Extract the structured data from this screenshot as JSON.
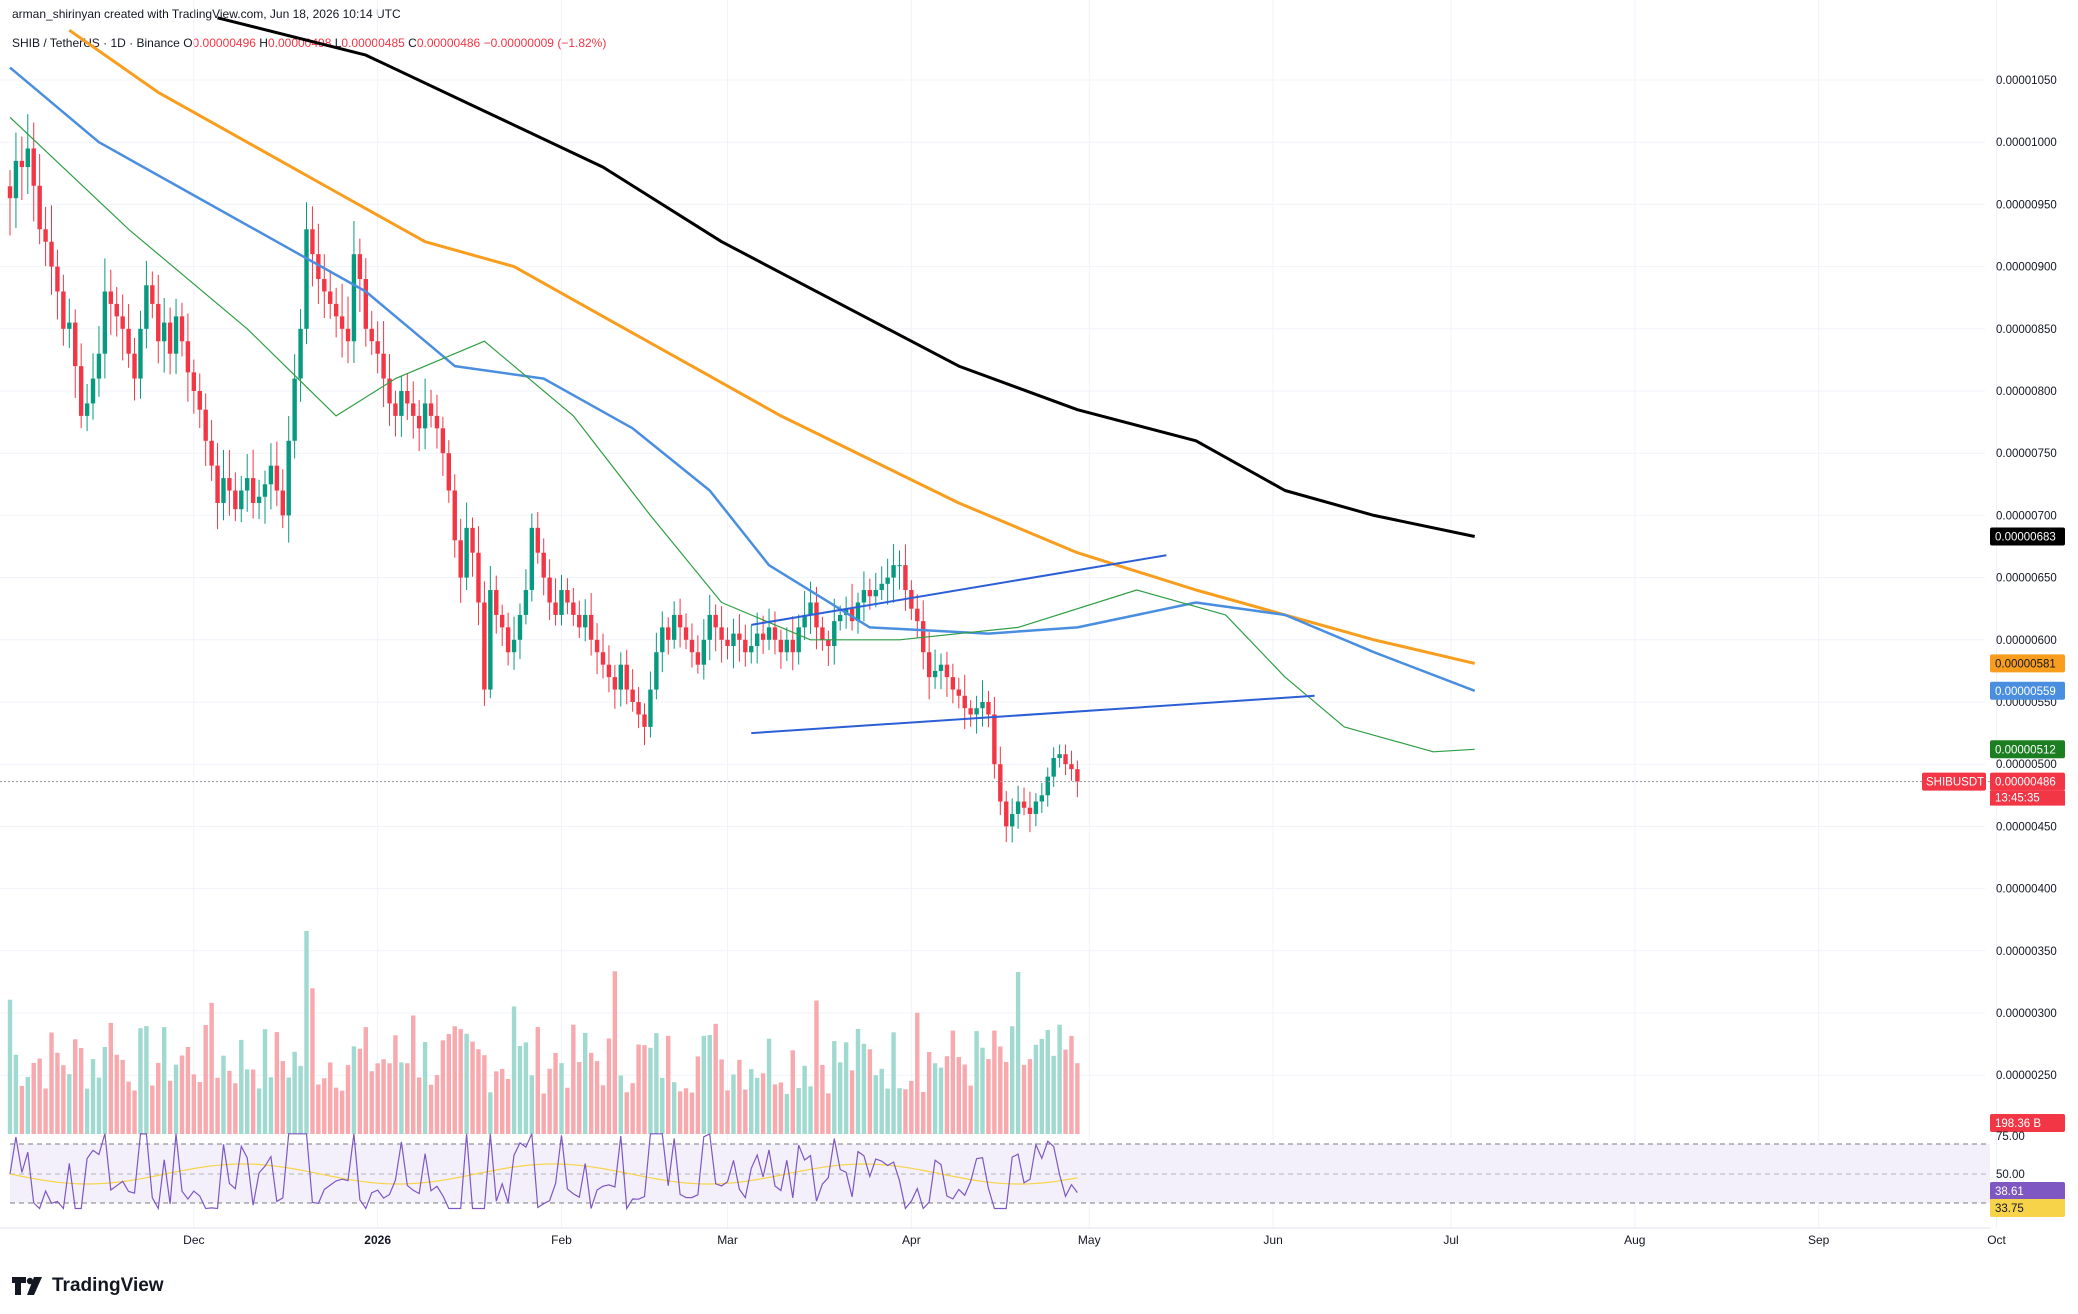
{
  "header": {
    "attribution": "arman_shirinyan created with TradingView.com, Jun 18, 2026 10:14 UTC",
    "symbol": "SHIB / TetherUS · 1D · Binance",
    "open_label": "O",
    "open": "0.00000496",
    "high_label": "H",
    "high": "0.00000498",
    "low_label": "L",
    "low": "0.00000485",
    "close_label": "C",
    "close": "0.00000486",
    "change": "−0.00000009 (−1.82%)"
  },
  "brand": {
    "name": "TradingView",
    "icon": "tradingview-logo-icon"
  },
  "colors": {
    "up": "#089981",
    "down": "#f23645",
    "ma_black": "#000000",
    "ma_orange": "#f89d1d",
    "ma_blue": "#4a8ee0",
    "ma_green": "#2f9e44",
    "channel": "#2c5fd6",
    "rsi": "#7e57c2",
    "rsi_ma": "#f7d34a"
  },
  "chart_data": {
    "type": "candlestick",
    "symbol": "SHIB / TetherUS",
    "interval": "1D",
    "exchange": "Binance",
    "price_axis": {
      "ticks": [
        "0.00001050",
        "0.00001000",
        "0.00000950",
        "0.00000900",
        "0.00000850",
        "0.00000800",
        "0.00000750",
        "0.00000700",
        "0.00000650",
        "0.00000600",
        "0.00000550",
        "0.00000500",
        "0.00000450",
        "0.00000400",
        "0.00000350",
        "0.00000300",
        "0.00000250"
      ],
      "range": [
        2.2e-06,
        1.1e-05
      ]
    },
    "time_axis": {
      "ticks": [
        {
          "label": "Dec",
          "day": 31,
          "bold": false
        },
        {
          "label": "2026",
          "day": 62,
          "bold": true
        },
        {
          "label": "Feb",
          "day": 93,
          "bold": false
        },
        {
          "label": "Mar",
          "day": 121,
          "bold": false
        },
        {
          "label": "Apr",
          "day": 152,
          "bold": false
        },
        {
          "label": "May",
          "day": 182,
          "bold": false
        },
        {
          "label": "Jun",
          "day": 213,
          "bold": false
        },
        {
          "label": "Jul",
          "day": 243,
          "bold": false
        },
        {
          "label": "Aug",
          "day": 274,
          "bold": false
        },
        {
          "label": "Sep",
          "day": 305,
          "bold": false
        },
        {
          "label": "Oct",
          "day": 335,
          "bold": false
        }
      ]
    },
    "closes": [
      9.55e-06,
      9.85e-06,
      9.8e-06,
      9.95e-06,
      9.65e-06,
      9.3e-06,
      9.2e-06,
      9e-06,
      8.8e-06,
      8.5e-06,
      8.55e-06,
      8.2e-06,
      7.8e-06,
      7.9e-06,
      8.1e-06,
      8.3e-06,
      8.8e-06,
      8.7e-06,
      8.6e-06,
      8.5e-06,
      8.3e-06,
      8.1e-06,
      8.5e-06,
      8.85e-06,
      8.7e-06,
      8.4e-06,
      8.55e-06,
      8.3e-06,
      8.6e-06,
      8.4e-06,
      8.15e-06,
      8e-06,
      7.85e-06,
      7.6e-06,
      7.4e-06,
      7.1e-06,
      7.3e-06,
      7.2e-06,
      7.05e-06,
      7.2e-06,
      7.3e-06,
      7.1e-06,
      7.15e-06,
      7.25e-06,
      7.4e-06,
      7.2e-06,
      7e-06,
      7.6e-06,
      8.1e-06,
      8.5e-06,
      9.3e-06,
      9.1e-06,
      8.9e-06,
      8.8e-06,
      8.7e-06,
      8.6e-06,
      8.5e-06,
      8.4e-06,
      9.1e-06,
      8.9e-06,
      8.5e-06,
      8.4e-06,
      8.3e-06,
      8.1e-06,
      7.9e-06,
      7.8e-06,
      8e-06,
      7.9e-06,
      7.8e-06,
      7.7e-06,
      7.9e-06,
      7.8e-06,
      7.7e-06,
      7.5e-06,
      7.2e-06,
      6.8e-06,
      6.5e-06,
      6.9e-06,
      6.7e-06,
      6.3e-06,
      5.6e-06,
      6.4e-06,
      6.2e-06,
      6.1e-06,
      5.9e-06,
      6e-06,
      6.2e-06,
      6.4e-06,
      6.9e-06,
      6.7e-06,
      6.5e-06,
      6.3e-06,
      6.2e-06,
      6.4e-06,
      6.3e-06,
      6.2e-06,
      6.1e-06,
      6.2e-06,
      6e-06,
      5.9e-06,
      5.8e-06,
      5.7e-06,
      5.6e-06,
      5.8e-06,
      5.6e-06,
      5.5e-06,
      5.4e-06,
      5.3e-06,
      5.6e-06,
      5.9e-06,
      6.1e-06,
      6e-06,
      6.2e-06,
      6.1e-06,
      6e-06,
      5.9e-06,
      5.8e-06,
      6e-06,
      6.2e-06,
      6.1e-06,
      6e-06,
      5.95e-06,
      6.05e-06,
      6e-06,
      5.9e-06,
      5.95e-06,
      6.05e-06,
      6e-06,
      6.1e-06,
      6e-06,
      5.9e-06,
      6e-06,
      5.9e-06,
      6.1e-06,
      6.2e-06,
      6.3e-06,
      6.1e-06,
      6e-06,
      5.95e-06,
      6.15e-06,
      6.2e-06,
      6.25e-06,
      6.15e-06,
      6.3e-06,
      6.4e-06,
      6.35e-06,
      6.4e-06,
      6.45e-06,
      6.5e-06,
      6.6e-06,
      6.6e-06,
      6.4e-06,
      6.25e-06,
      6.15e-06,
      5.9e-06,
      5.7e-06,
      5.75e-06,
      5.8e-06,
      5.7e-06,
      5.6e-06,
      5.55e-06,
      5.45e-06,
      5.4e-06,
      5.45e-06,
      5.5e-06,
      5.4e-06,
      5e-06,
      4.7e-06,
      4.5e-06,
      4.6e-06,
      4.7e-06,
      4.65e-06,
      4.6e-06,
      4.7e-06,
      4.75e-06,
      4.9e-06,
      5.05e-06,
      5.08e-06,
      5e-06,
      4.96e-06,
      4.86e-06
    ],
    "ma_values": {
      "black": "0.00000683",
      "orange": "0.00000581",
      "blue": "0.00000559",
      "green": "0.00000512"
    },
    "last_price": {
      "symbol": "SHIBUSDT",
      "price": "0.00000486",
      "countdown": "13:45:35"
    },
    "volume": {
      "last": "198.36 B"
    },
    "rsi": {
      "levels": [
        "75.00",
        "50.00"
      ],
      "value": "38.61",
      "ma": "33.75"
    },
    "channel": {
      "upper": [
        [
          125,
          6.12e-06
        ],
        [
          195,
          6.68e-06
        ]
      ],
      "lower": [
        [
          125,
          5.25e-06
        ],
        [
          220,
          5.55e-06
        ]
      ]
    }
  }
}
